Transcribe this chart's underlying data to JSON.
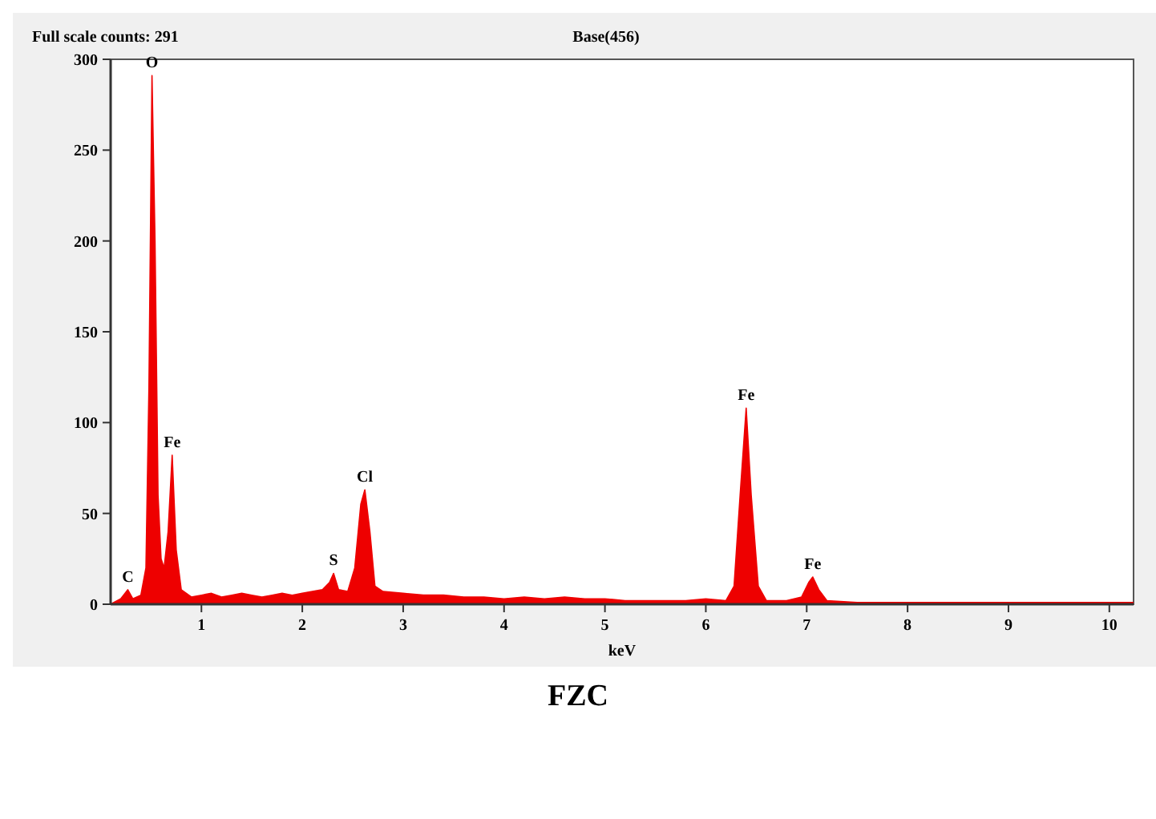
{
  "chart_data": {
    "type": "area",
    "title": "FZC",
    "xlabel": "keV",
    "annotations": [
      "Full scale counts: 291",
      "Base(456)",
      {
        "text": "C",
        "x": 0.27,
        "y": 8
      },
      {
        "text": "O",
        "x": 0.51,
        "y": 291
      },
      {
        "text": "Fe",
        "x": 0.71,
        "y": 82
      },
      {
        "text": "S",
        "x": 2.31,
        "y": 17
      },
      {
        "text": "Cl",
        "x": 2.62,
        "y": 63
      },
      {
        "text": "Fe",
        "x": 6.4,
        "y": 108
      },
      {
        "text": "Fe",
        "x": 7.06,
        "y": 15
      }
    ],
    "x": [
      0.1,
      0.2,
      0.27,
      0.32,
      0.4,
      0.45,
      0.48,
      0.51,
      0.54,
      0.57,
      0.6,
      0.63,
      0.67,
      0.71,
      0.75,
      0.8,
      0.9,
      1.0,
      1.1,
      1.2,
      1.3,
      1.4,
      1.5,
      1.6,
      1.7,
      1.8,
      1.9,
      2.0,
      2.1,
      2.2,
      2.27,
      2.31,
      2.36,
      2.45,
      2.52,
      2.58,
      2.62,
      2.67,
      2.72,
      2.8,
      3.0,
      3.2,
      3.4,
      3.6,
      3.8,
      4.0,
      4.2,
      4.4,
      4.6,
      4.8,
      5.0,
      5.2,
      5.4,
      5.6,
      5.8,
      6.0,
      6.2,
      6.28,
      6.34,
      6.4,
      6.45,
      6.52,
      6.6,
      6.8,
      6.95,
      7.02,
      7.06,
      7.12,
      7.2,
      7.5,
      8.0,
      8.5,
      9.0,
      9.5,
      10.0,
      10.24
    ],
    "series": [
      {
        "color": "#ee0000",
        "values": [
          0,
          3,
          8,
          3,
          5,
          20,
          120,
          291,
          200,
          60,
          25,
          20,
          40,
          82,
          30,
          8,
          4,
          5,
          6,
          4,
          5,
          6,
          5,
          4,
          5,
          6,
          5,
          6,
          7,
          8,
          12,
          17,
          8,
          7,
          20,
          55,
          63,
          40,
          10,
          7,
          6,
          5,
          5,
          4,
          4,
          3,
          4,
          3,
          4,
          3,
          3,
          2,
          2,
          2,
          2,
          3,
          2,
          10,
          60,
          108,
          60,
          10,
          2,
          2,
          4,
          12,
          15,
          8,
          2,
          1,
          1,
          1,
          1,
          1,
          1,
          1
        ]
      }
    ],
    "xlim": [
      0.1,
      10.24
    ],
    "ylim": [
      0,
      300
    ],
    "xticks": [
      1,
      2,
      3,
      4,
      5,
      6,
      7,
      8,
      9,
      10
    ],
    "yticks": [
      0,
      50,
      100,
      150,
      200,
      250,
      300
    ],
    "grid": false
  }
}
